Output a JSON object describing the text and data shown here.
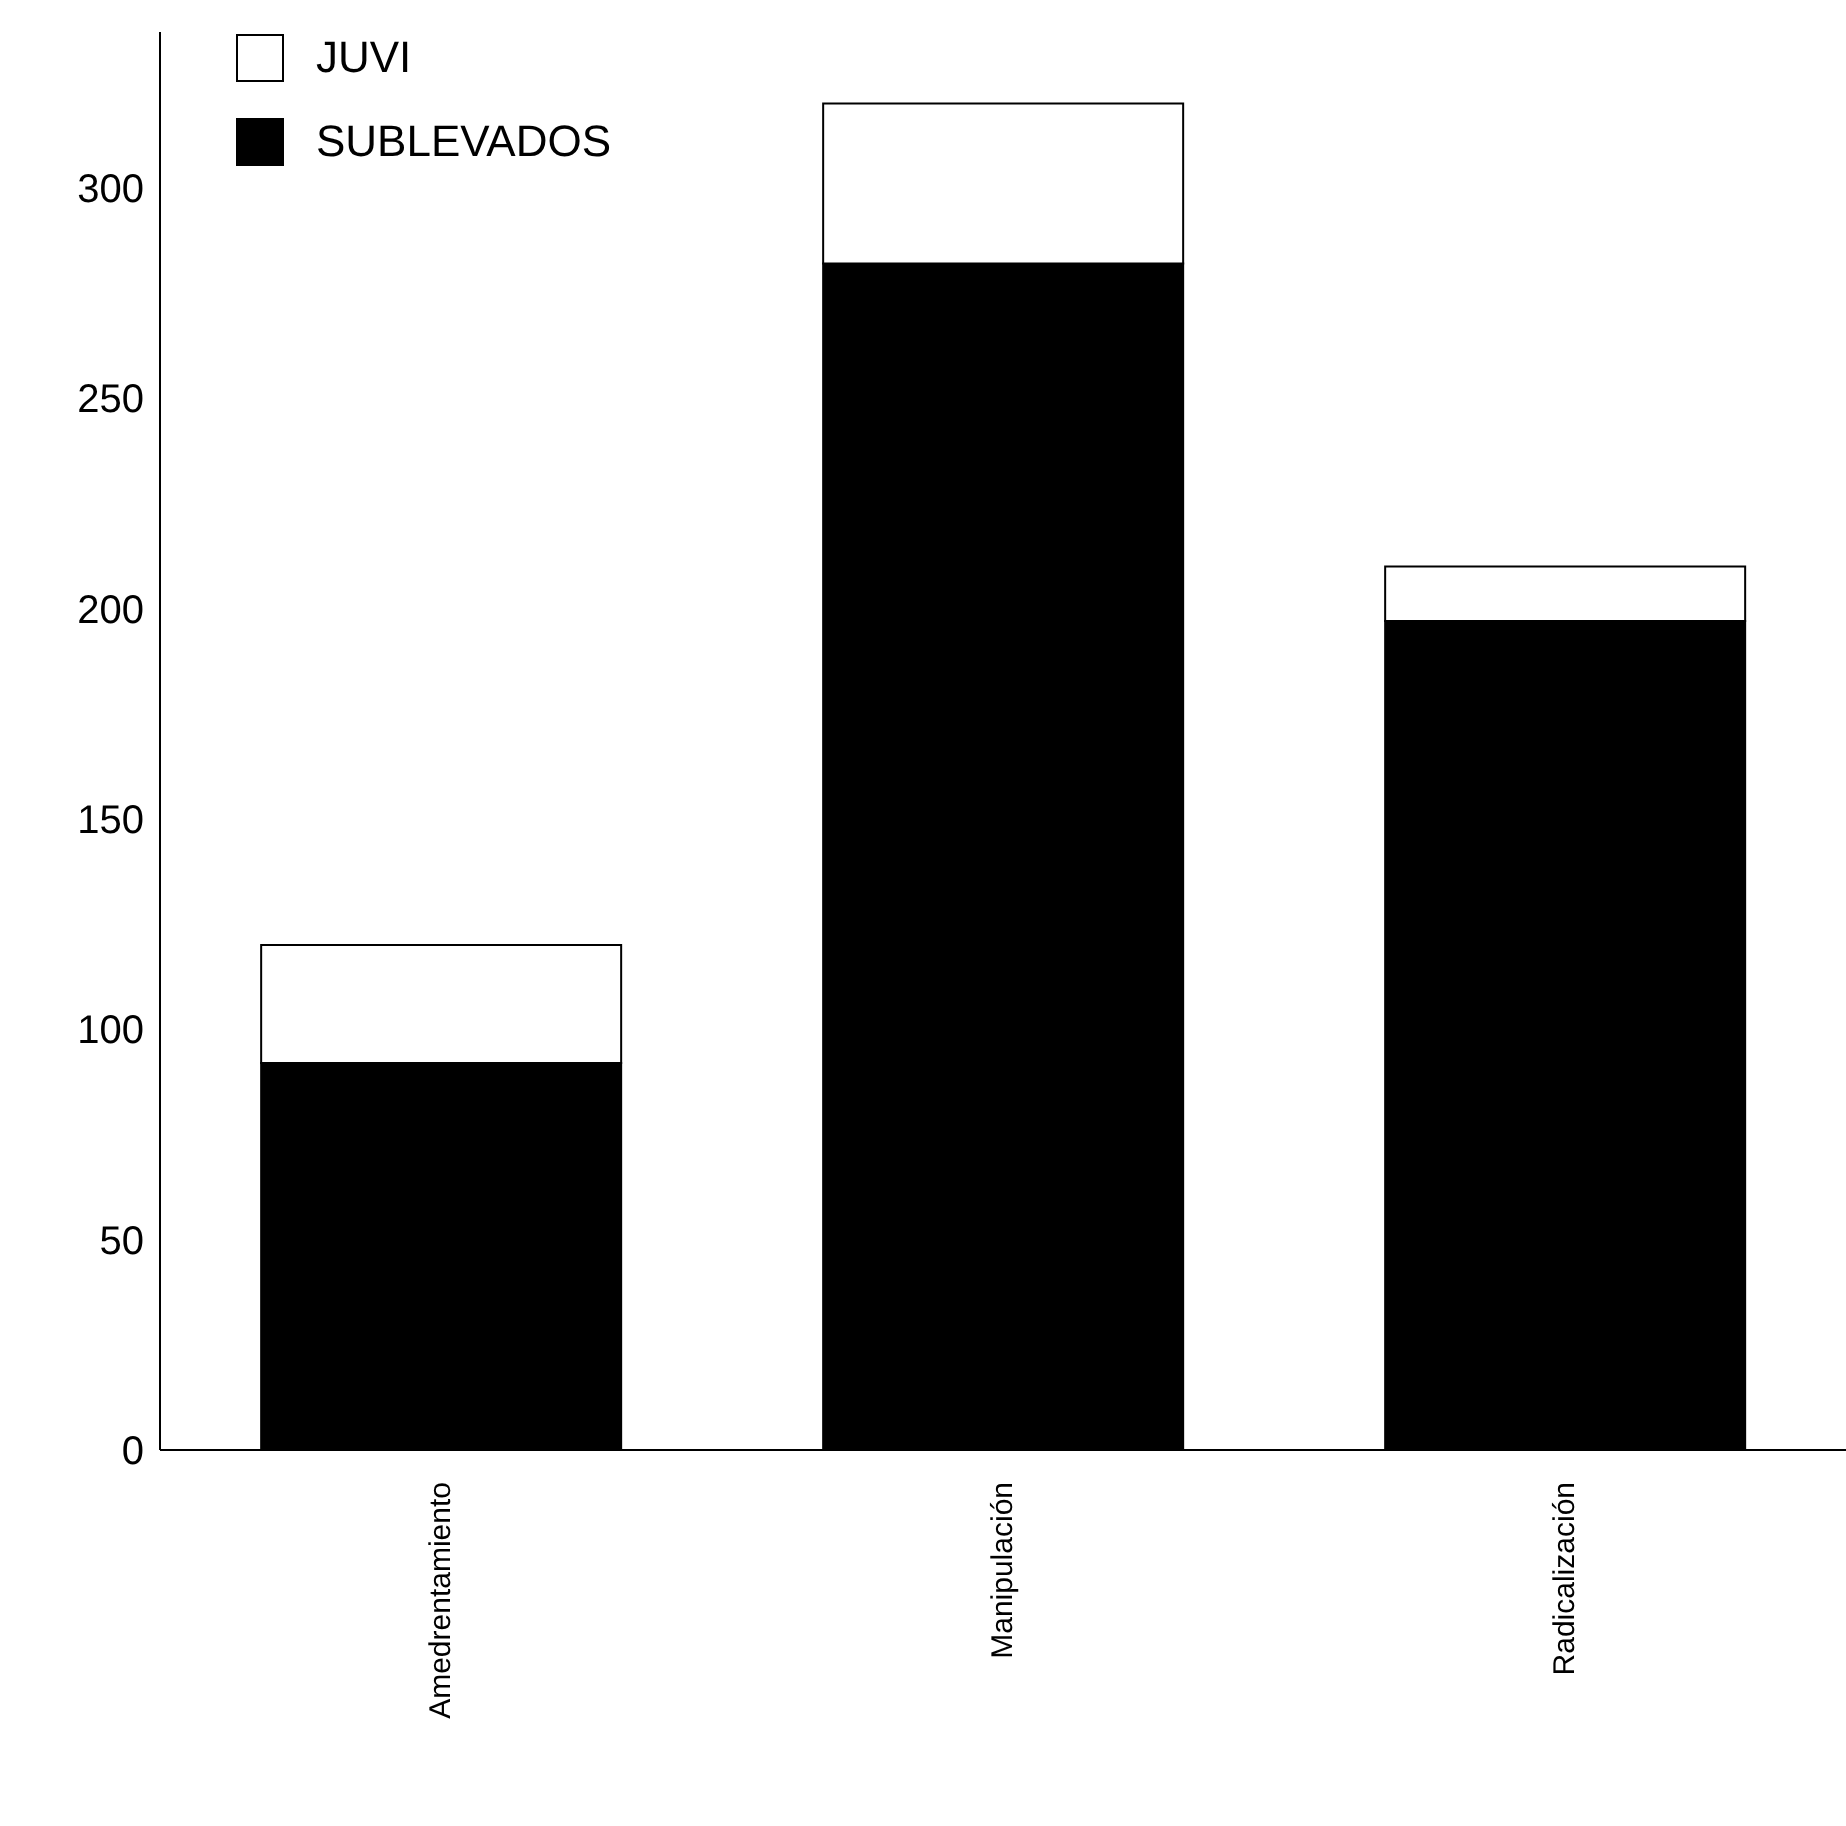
{
  "chart_data": {
    "type": "bar",
    "stacked": true,
    "categories": [
      "Amedrentamiento",
      "Manipulación",
      "Radicalización"
    ],
    "series": [
      {
        "name": "SUBLEVADOS",
        "color": "#000000",
        "values": [
          92,
          282,
          197
        ]
      },
      {
        "name": "JUVI",
        "color": "#ffffff",
        "values": [
          28,
          38,
          13
        ]
      }
    ],
    "ylim": [
      0,
      337
    ],
    "yticks": [
      0,
      50,
      100,
      150,
      200,
      250,
      300
    ],
    "legend": "top left"
  }
}
